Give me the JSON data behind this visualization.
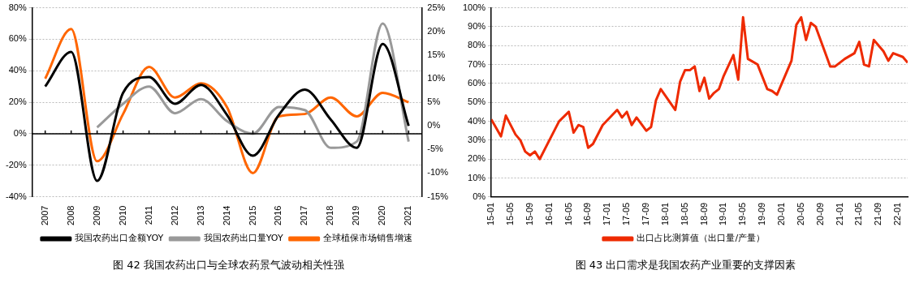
{
  "chart_data": [
    {
      "type": "line",
      "categories": [
        "2007",
        "2008",
        "2009",
        "2010",
        "2011",
        "2012",
        "2013",
        "2014",
        "2015",
        "2016",
        "2017",
        "2018",
        "2019",
        "2020",
        "2021"
      ],
      "series": [
        {
          "name": "我国农药出口金额YOY",
          "color": "#000000",
          "values": [
            30,
            52,
            -30,
            26,
            36,
            19,
            31,
            12,
            -14,
            12,
            28,
            9,
            -9,
            57,
            5
          ]
        },
        {
          "name": "我国农药出口量YOY",
          "color": "#999999",
          "values": [
            null,
            null,
            4,
            19,
            30,
            13,
            22,
            8,
            0,
            17,
            15,
            -9,
            -5,
            70,
            -5
          ]
        },
        {
          "name": "全球植保市场销售增速",
          "color": "#ff6600",
          "axis": "y2",
          "values": [
            10,
            20.5,
            -7.5,
            2.5,
            12.5,
            6,
            9,
            4,
            -10,
            2,
            2.5,
            6,
            2,
            7,
            5
          ]
        }
      ],
      "ylim": [
        -40,
        80
      ],
      "yticks": [
        {
          "value": -40,
          "label": "-40%"
        },
        {
          "value": -20,
          "label": "-20%"
        },
        {
          "value": 0,
          "label": "0%"
        },
        {
          "value": 20,
          "label": "20%"
        },
        {
          "value": 40,
          "label": "40%"
        },
        {
          "value": 60,
          "label": "60%"
        },
        {
          "value": 80,
          "label": "80%"
        }
      ],
      "y2lim": [
        -15,
        25
      ],
      "y2ticks": [
        {
          "value": -15,
          "label": "-15%"
        },
        {
          "value": -10,
          "label": "-10%"
        },
        {
          "value": -5,
          "label": "-5%"
        },
        {
          "value": 0,
          "label": "0%"
        },
        {
          "value": 5,
          "label": "5%"
        },
        {
          "value": 10,
          "label": "10%"
        },
        {
          "value": 15,
          "label": "15%"
        },
        {
          "value": 20,
          "label": "20%"
        },
        {
          "value": 25,
          "label": "25%"
        }
      ],
      "grid": "y",
      "legend": "bottom",
      "annotations": [
        "图 42  我国农药出口与全球农药景气波动相关性强"
      ]
    },
    {
      "type": "line",
      "x": [
        "2015-01",
        "2015-03",
        "2015-04",
        "2015-06",
        "2015-07",
        "2015-08",
        "2015-09",
        "2015-10",
        "2015-11",
        "2016-01",
        "2016-03",
        "2016-05",
        "2016-06",
        "2016-07",
        "2016-08",
        "2016-09",
        "2016-10",
        "2016-12",
        "2017-03",
        "2017-04",
        "2017-05",
        "2017-06",
        "2017-07",
        "2017-09",
        "2017-10",
        "2017-11",
        "2017-12",
        "2018-03",
        "2018-04",
        "2018-05",
        "2018-06",
        "2018-07",
        "2018-08",
        "2018-09",
        "2018-10",
        "2018-11",
        "2018-12",
        "2019-01",
        "2019-03",
        "2019-04",
        "2019-05",
        "2019-06",
        "2019-08",
        "2019-10",
        "2019-11",
        "2019-12",
        "2020-03",
        "2020-04",
        "2020-05",
        "2020-06",
        "2020-07",
        "2020-08",
        "2020-11",
        "2020-12",
        "2021-02",
        "2021-04",
        "2021-05",
        "2021-06",
        "2021-07",
        "2021-08",
        "2021-10",
        "2021-11",
        "2021-12",
        "2022-02",
        "2022-03"
      ],
      "series": [
        {
          "name": "出口占比测算值（出口量/产量）",
          "color": "#ee2a00",
          "values": [
            41,
            32,
            43,
            33,
            30,
            24,
            22,
            24,
            20,
            30,
            40,
            45,
            34,
            38,
            37,
            26,
            28,
            38,
            46,
            42,
            45,
            38,
            42,
            35,
            37,
            51,
            57,
            46,
            61,
            67,
            67,
            69,
            56,
            63,
            52,
            55,
            57,
            64,
            75,
            62,
            95,
            73,
            70,
            57,
            56,
            54,
            72,
            91,
            95,
            83,
            92,
            90,
            69,
            69,
            73,
            76,
            82,
            70,
            69,
            83,
            77,
            72,
            76,
            74,
            71
          ]
        }
      ],
      "xlim": [
        "2015-01",
        "2022-03"
      ],
      "xticks": [
        {
          "value": "2015-01",
          "label": "15-01"
        },
        {
          "value": "2015-05",
          "label": "15-05"
        },
        {
          "value": "2015-09",
          "label": "15-09"
        },
        {
          "value": "2016-01",
          "label": "16-01"
        },
        {
          "value": "2016-05",
          "label": "16-05"
        },
        {
          "value": "2016-09",
          "label": "16-09"
        },
        {
          "value": "2017-01",
          "label": "17-01"
        },
        {
          "value": "2017-05",
          "label": "17-05"
        },
        {
          "value": "2017-09",
          "label": "17-09"
        },
        {
          "value": "2018-01",
          "label": "18-01"
        },
        {
          "value": "2018-05",
          "label": "18-05"
        },
        {
          "value": "2018-09",
          "label": "18-09"
        },
        {
          "value": "2019-01",
          "label": "19-01"
        },
        {
          "value": "2019-05",
          "label": "19-05"
        },
        {
          "value": "2019-09",
          "label": "19-09"
        },
        {
          "value": "2020-01",
          "label": "20-01"
        },
        {
          "value": "2020-05",
          "label": "20-05"
        },
        {
          "value": "2020-09",
          "label": "20-09"
        },
        {
          "value": "2021-01",
          "label": "21-01"
        },
        {
          "value": "2021-05",
          "label": "21-05"
        },
        {
          "value": "2021-09",
          "label": "21-09"
        },
        {
          "value": "2022-01",
          "label": "22-01"
        }
      ],
      "ylim": [
        0,
        100
      ],
      "yticks": [
        {
          "value": 0,
          "label": "0%"
        },
        {
          "value": 10,
          "label": "10%"
        },
        {
          "value": 20,
          "label": "20%"
        },
        {
          "value": 30,
          "label": "30%"
        },
        {
          "value": 40,
          "label": "40%"
        },
        {
          "value": 50,
          "label": "50%"
        },
        {
          "value": 60,
          "label": "60%"
        },
        {
          "value": 70,
          "label": "70%"
        },
        {
          "value": 80,
          "label": "80%"
        },
        {
          "value": 90,
          "label": "90%"
        },
        {
          "value": 100,
          "label": "100%"
        }
      ],
      "grid": "y",
      "legend": "bottom",
      "annotations": [
        "图 43  出口需求是我国农药产业重要的支撑因素"
      ]
    }
  ]
}
